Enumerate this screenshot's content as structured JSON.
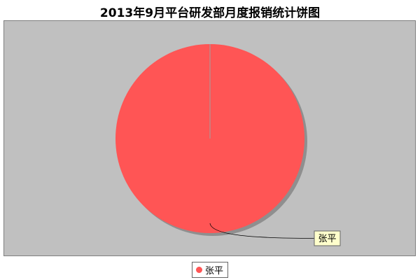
{
  "chart_data": {
    "type": "pie",
    "title": "2013年9月平台研发部月度报销统计饼图",
    "slices": [
      {
        "label": "张平",
        "value": 100,
        "color": "#ff5555"
      }
    ],
    "legend": {
      "position": "bottom",
      "entries": [
        "张平"
      ]
    },
    "background_color": "#c0c0c0",
    "label_box_color": "#ffffcc"
  }
}
